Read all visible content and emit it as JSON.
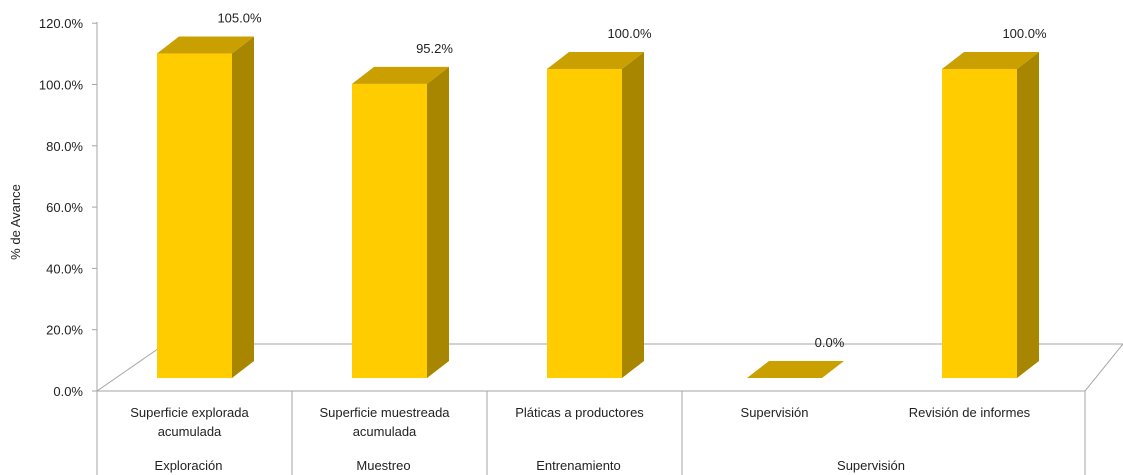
{
  "chart_data": {
    "type": "bar",
    "style": "3d-column",
    "ylabel": "% de Avance",
    "ylim": [
      0,
      120
    ],
    "ytick_step": 20,
    "ytick_labels": [
      "0.0%",
      "20.0%",
      "40.0%",
      "60.0%",
      "80.0%",
      "100.0%",
      "120.0%"
    ],
    "grid": false,
    "categories": [
      {
        "label_lines": [
          "Superficie explorada",
          "acumulada"
        ],
        "group": "Exploración"
      },
      {
        "label_lines": [
          "Superficie muestreada",
          "acumulada"
        ],
        "group": "Muestreo"
      },
      {
        "label_lines": [
          "Pláticas a productores"
        ],
        "group": "Entrenamiento"
      },
      {
        "label_lines": [
          "Supervisión"
        ],
        "group": "Supervisión"
      },
      {
        "label_lines": [
          "Revisión de informes"
        ],
        "group": "Supervisión"
      }
    ],
    "groups": [
      {
        "label": "Exploración",
        "span": 1
      },
      {
        "label": "Muestreo",
        "span": 1
      },
      {
        "label": "Entrenamiento",
        "span": 1
      },
      {
        "label": "Supervisión",
        "span": 2
      }
    ],
    "values": [
      105.0,
      95.2,
      100.0,
      0.0,
      100.0
    ],
    "data_labels": [
      "105.0%",
      "95.2%",
      "100.0%",
      "0.0%",
      "100.0%"
    ],
    "colors": {
      "bar_front": "#FFCC00",
      "bar_top": "#C9A000",
      "bar_side": "#A88600",
      "floor": "#FFFFFF",
      "axis": "#A6A6A6"
    }
  }
}
